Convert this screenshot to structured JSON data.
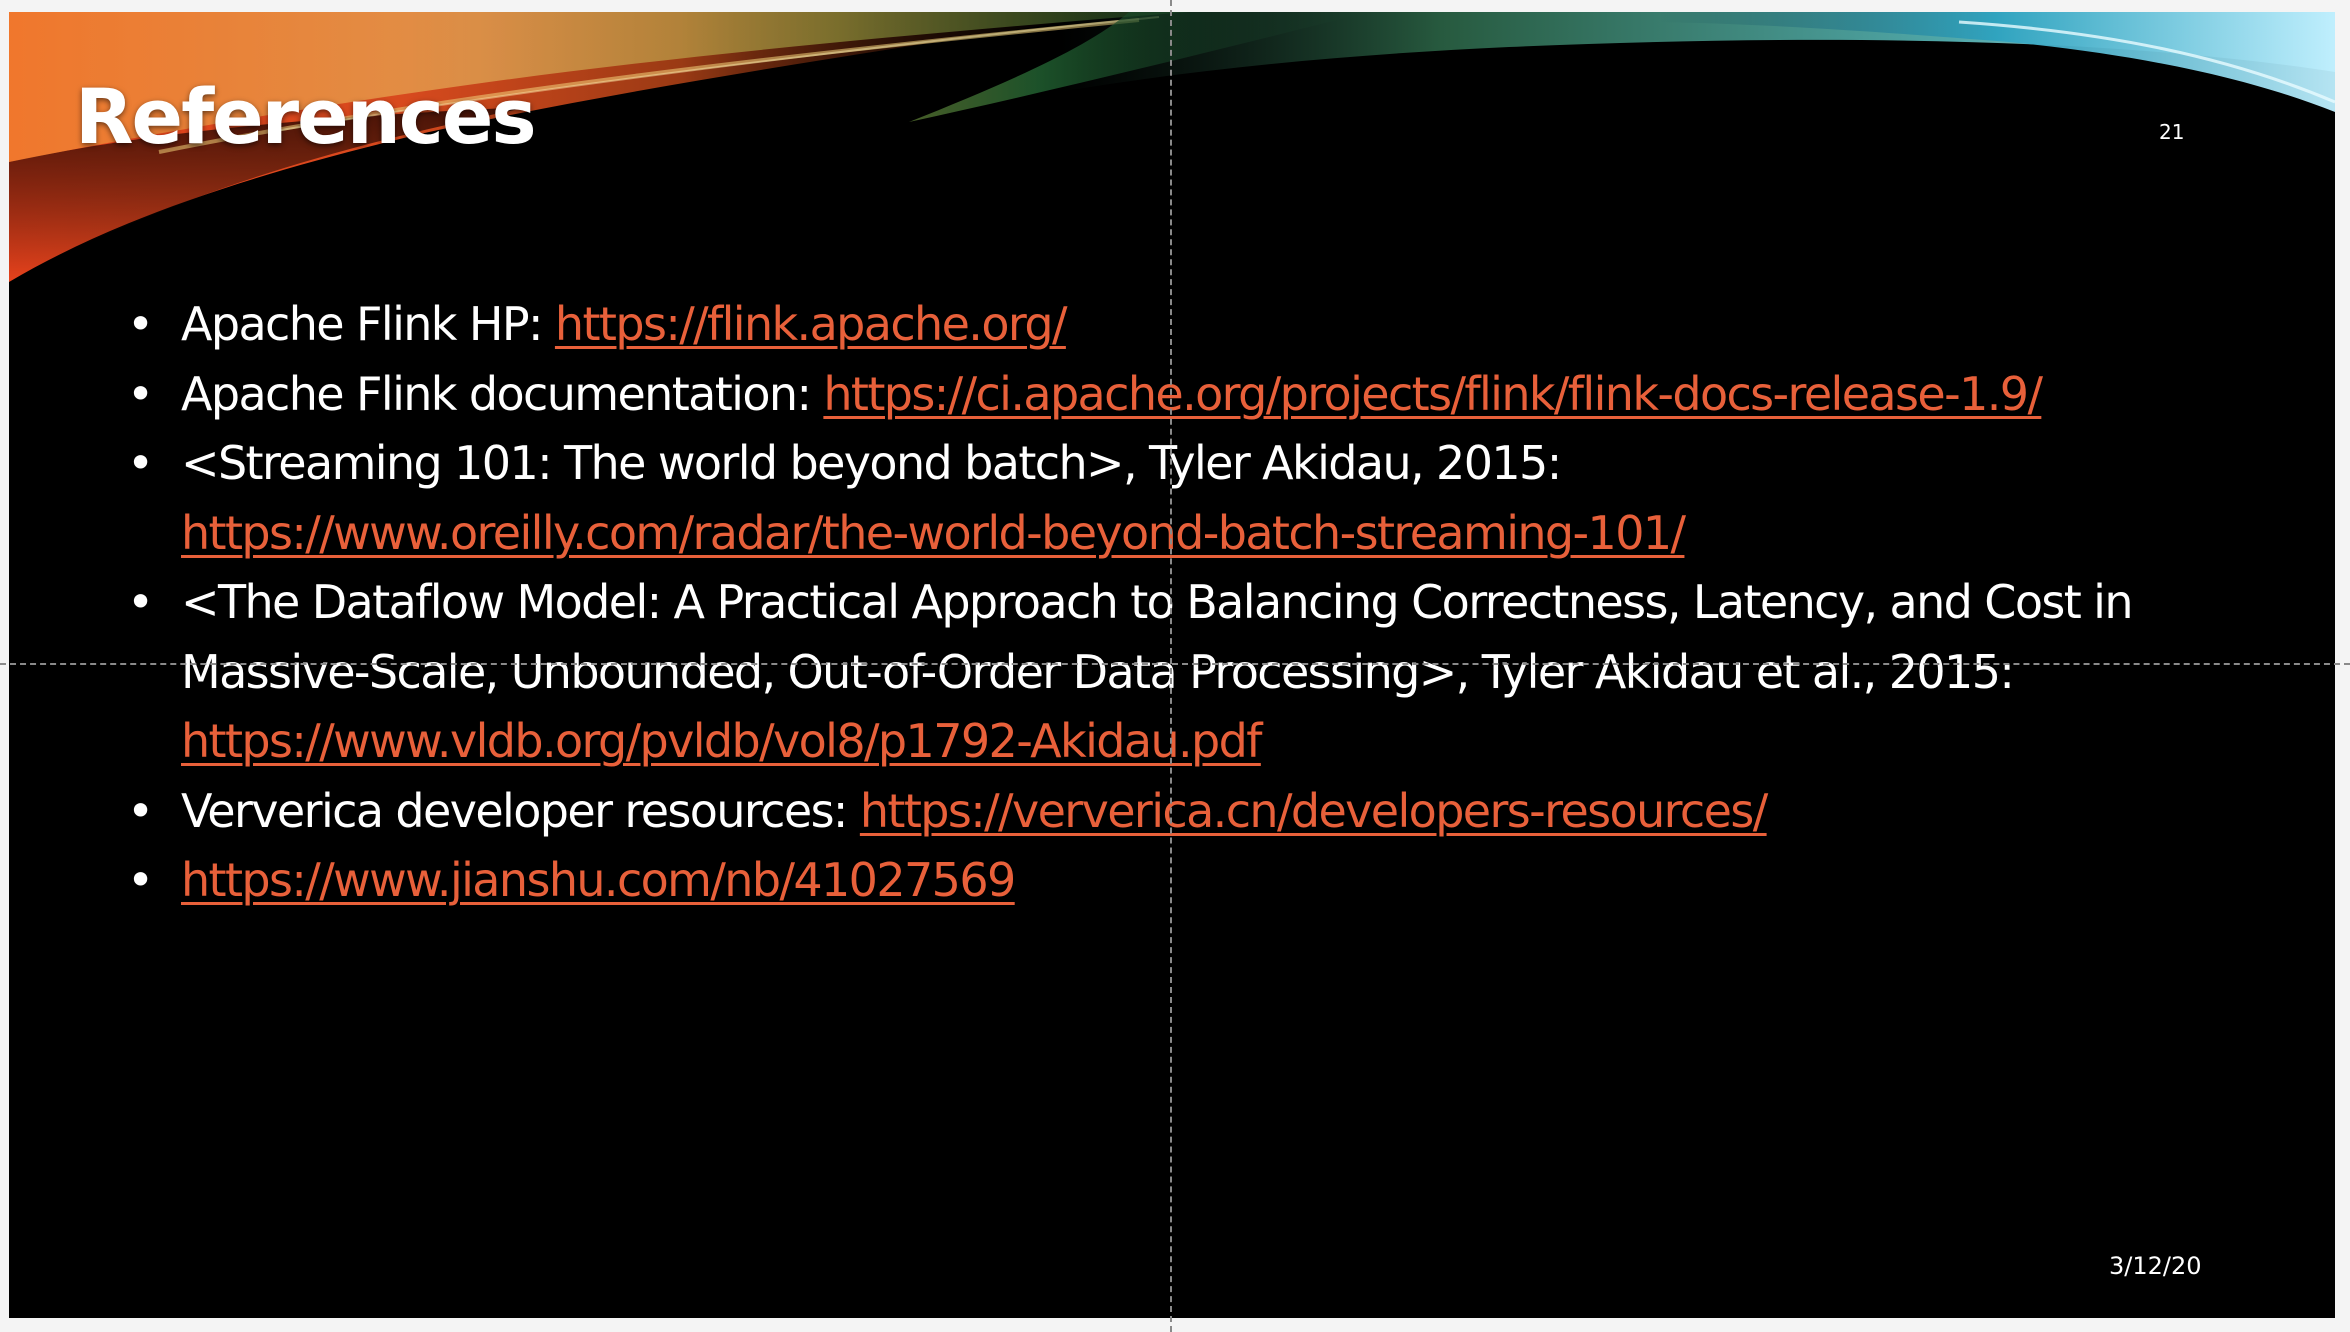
{
  "slide": {
    "title": "References",
    "number": "21",
    "date": "3/12/20",
    "bullet_symbol": "•",
    "colors": {
      "background": "#000000",
      "text": "#ffffff",
      "link": "#e8603a"
    }
  },
  "references": [
    {
      "text": "Apache Flink HP: ",
      "link": "https://flink.apache.org/"
    },
    {
      "text": "Apache Flink documentation: ",
      "link": "https://ci.apache.org/projects/flink/flink-docs-release-1.9/"
    },
    {
      "text": "<Streaming 101: The world beyond batch>, Tyler Akidau, 2015: ",
      "link": "https://www.oreilly.com/radar/the-world-beyond-batch-streaming-101/"
    },
    {
      "text": "<The Dataflow Model: A Practical Approach to Balancing Correctness, Latency, and Cost in Massive-Scale, Unbounded, Out-of-Order Data Processing>, Tyler Akidau et al., 2015: ",
      "link": "https://www.vldb.org/pvldb/vol8/p1792-Akidau.pdf"
    },
    {
      "text": "Ververica developer resources: ",
      "link": "https://ververica.cn/developers-resources/"
    },
    {
      "text": "",
      "link": "https://www.jianshu.com/nb/41027569"
    }
  ]
}
